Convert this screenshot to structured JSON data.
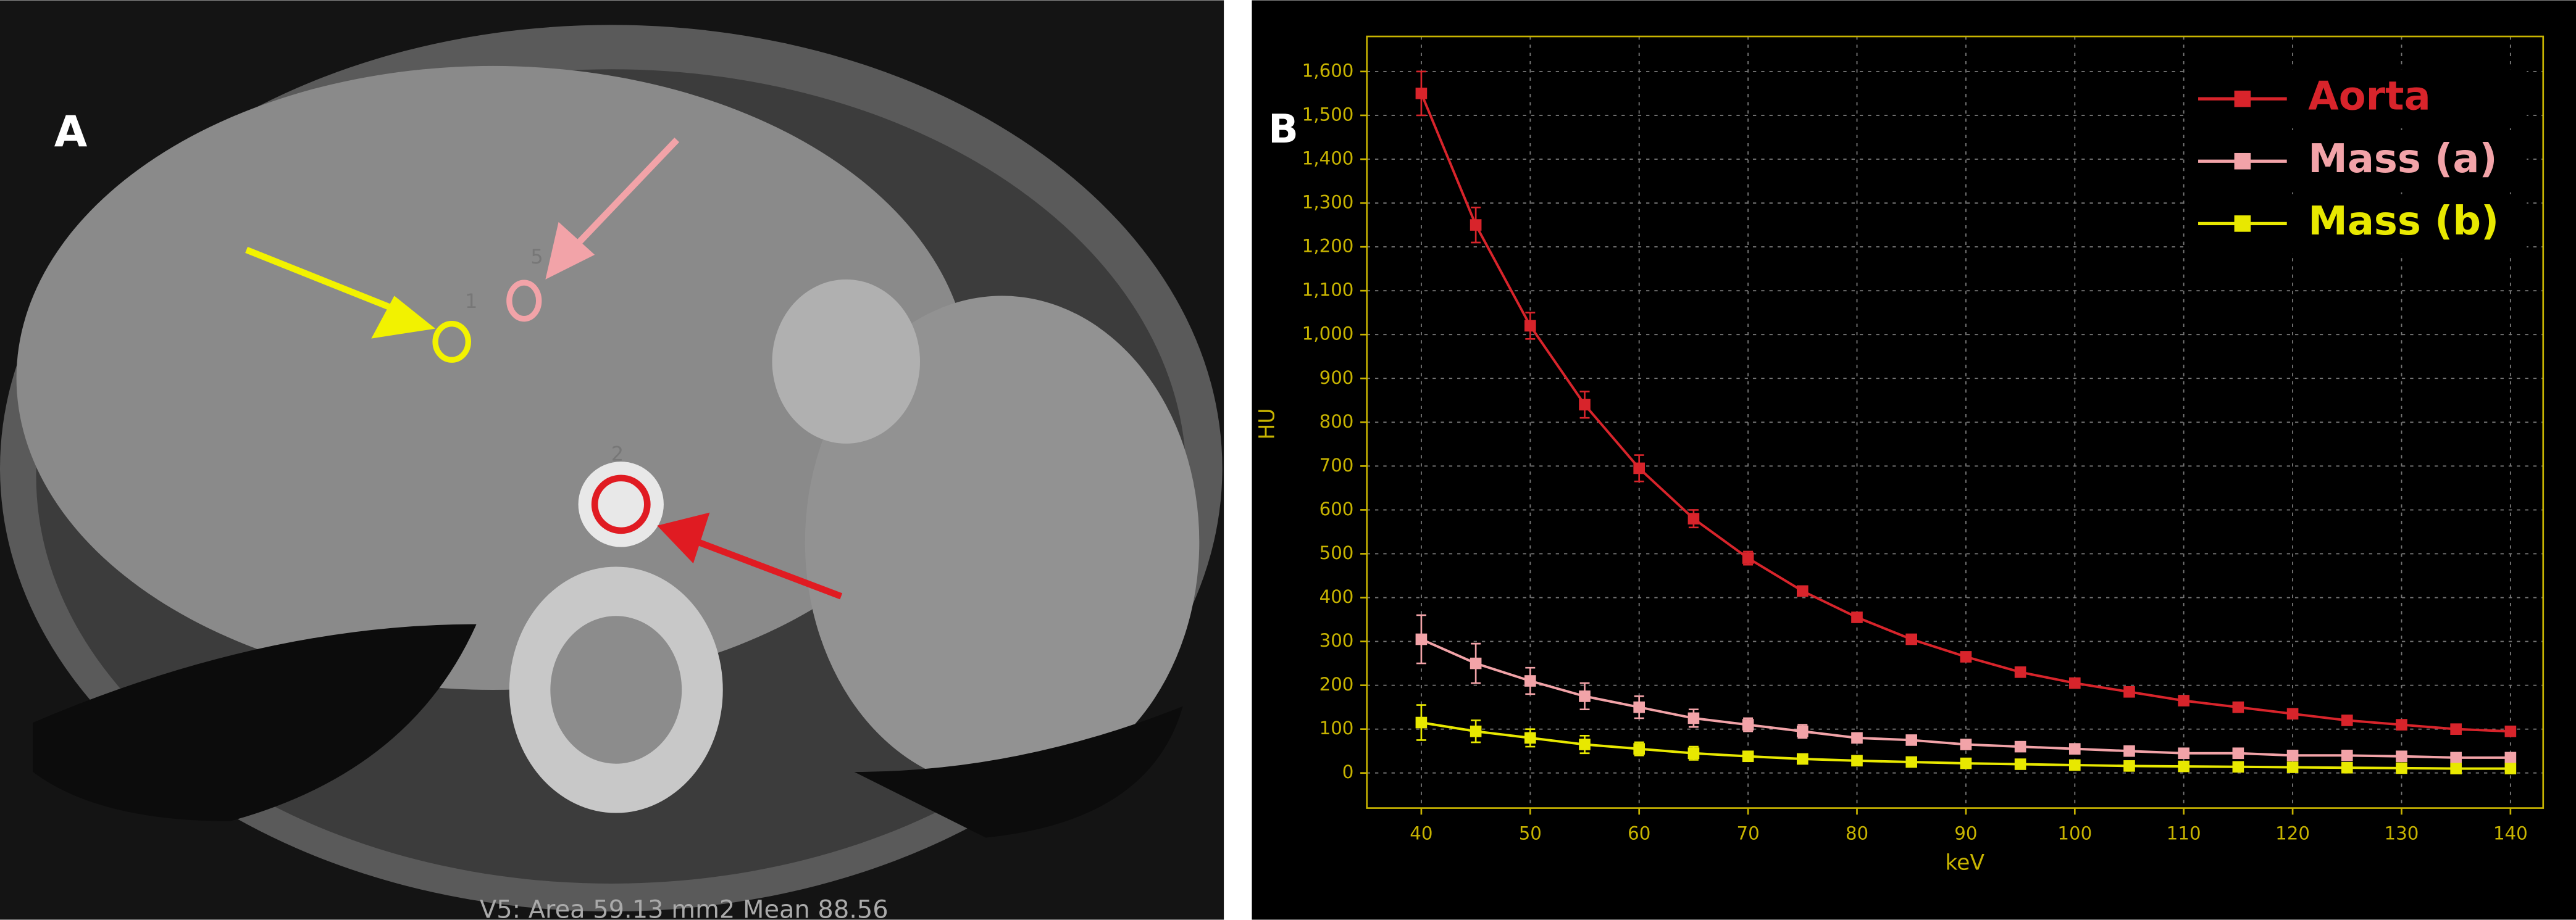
{
  "panel_a": {
    "label": "A",
    "roi_labels": [
      "1",
      "5",
      "2"
    ],
    "status": "V5: Area 59.13 mm2   Mean 88.56"
  },
  "chart_data": {
    "type": "line",
    "panel_label": "B",
    "x_label": "keV",
    "y_label": "HU",
    "x": [
      40,
      45,
      50,
      55,
      60,
      65,
      70,
      75,
      80,
      85,
      90,
      95,
      100,
      105,
      110,
      115,
      120,
      125,
      130,
      135,
      140
    ],
    "series": [
      {
        "name": "Aorta",
        "color": "#d8242b",
        "values": [
          1550,
          1250,
          1020,
          840,
          695,
          580,
          490,
          415,
          355,
          305,
          265,
          230,
          205,
          185,
          165,
          150,
          135,
          120,
          110,
          100,
          95
        ],
        "errors": [
          50,
          40,
          30,
          30,
          30,
          20,
          15,
          10,
          10,
          10,
          10,
          10,
          10,
          10,
          10,
          10,
          10,
          10,
          10,
          10,
          10
        ]
      },
      {
        "name": "Mass (a)",
        "color": "#f2a3a8",
        "values": [
          305,
          250,
          210,
          175,
          150,
          125,
          110,
          95,
          80,
          75,
          65,
          60,
          55,
          50,
          45,
          45,
          40,
          40,
          38,
          35,
          35
        ],
        "errors": [
          55,
          45,
          30,
          30,
          25,
          20,
          15,
          15,
          10,
          10,
          10,
          10,
          10,
          10,
          10,
          10,
          10,
          10,
          10,
          10,
          10
        ]
      },
      {
        "name": "Mass (b)",
        "color": "#e8e800",
        "values": [
          115,
          95,
          80,
          65,
          55,
          45,
          38,
          32,
          28,
          25,
          22,
          20,
          18,
          16,
          15,
          14,
          13,
          12,
          11,
          10,
          10
        ],
        "errors": [
          40,
          25,
          20,
          20,
          15,
          15,
          10,
          10,
          8,
          8,
          8,
          8,
          8,
          8,
          8,
          8,
          8,
          8,
          8,
          8,
          8
        ]
      }
    ],
    "xlim": [
      35,
      143
    ],
    "ylim": [
      -80,
      1680
    ],
    "xticks": [
      40,
      50,
      60,
      70,
      80,
      90,
      100,
      110,
      120,
      130,
      140
    ],
    "yticks": [
      0,
      100,
      200,
      300,
      400,
      500,
      600,
      700,
      800,
      900,
      {
        "value": 1000,
        "label": "1,000"
      },
      {
        "value": 1100,
        "label": "1,100"
      },
      {
        "value": 1200,
        "label": "1,200"
      },
      {
        "value": 1300,
        "label": "1,300"
      },
      {
        "value": 1400,
        "label": "1,400"
      },
      {
        "value": 1500,
        "label": "1,500"
      },
      {
        "value": 1600,
        "label": "1,600"
      }
    ],
    "grid": true,
    "legend": "upper right"
  }
}
